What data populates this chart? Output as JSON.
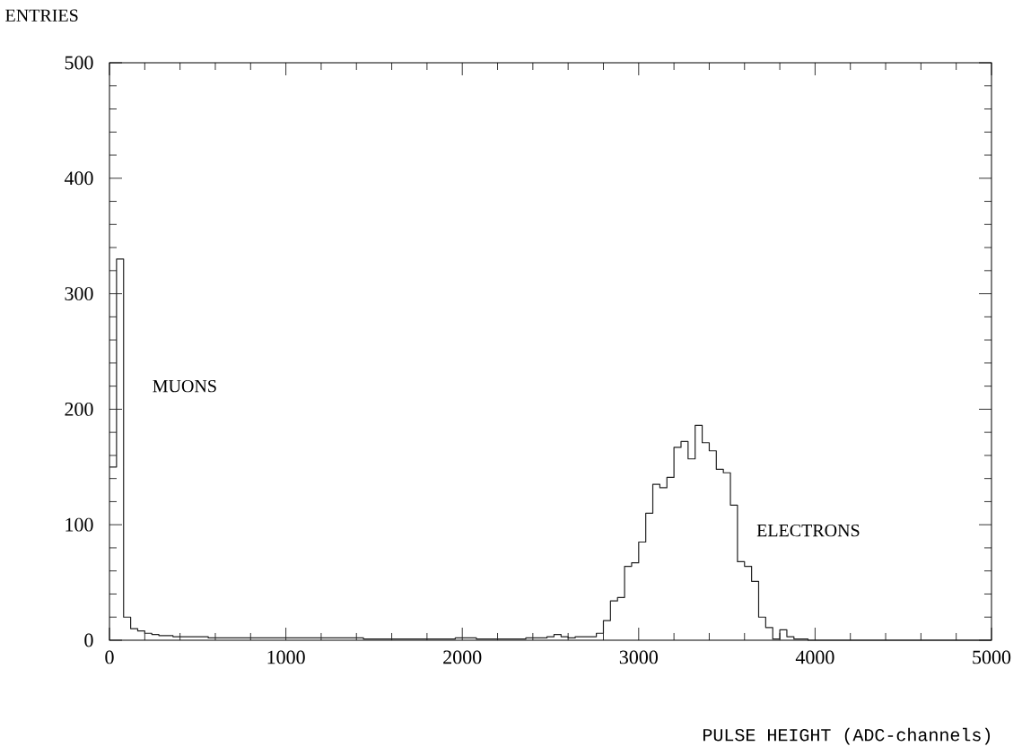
{
  "chart_data": {
    "type": "histogram",
    "xlabel": "PULSE HEIGHT (ADC-channels)",
    "ylabel": "ENTRIES",
    "bins": [
      0,
      40,
      80,
      120,
      160,
      200,
      240,
      280,
      320,
      360,
      400,
      440,
      480,
      520,
      560,
      600,
      640,
      680,
      720,
      760,
      800,
      840,
      880,
      920,
      960,
      1000,
      1040,
      1080,
      1120,
      1160,
      1200,
      1240,
      1280,
      1320,
      1360,
      1400,
      1440,
      1480,
      1520,
      1560,
      1600,
      1640,
      1680,
      1720,
      1760,
      1800,
      1840,
      1880,
      1920,
      1960,
      2000,
      2040,
      2080,
      2120,
      2160,
      2200,
      2240,
      2280,
      2320,
      2360,
      2400,
      2440,
      2480,
      2520,
      2560,
      2600,
      2640,
      2680,
      2720,
      2760,
      2800,
      2840,
      2880,
      2920,
      2960,
      3000,
      3040,
      3080,
      3120,
      3160,
      3200,
      3240,
      3280,
      3320,
      3360,
      3400,
      3440,
      3480,
      3520,
      3560,
      3600,
      3640,
      3680,
      3720,
      3760,
      3800,
      3840,
      3880,
      3920,
      3960,
      4000,
      4040,
      4080,
      4120,
      4160,
      4200,
      4240,
      4280,
      4320,
      4360,
      4400,
      4440,
      4480,
      4520,
      4560,
      4600,
      4640,
      4680,
      4720,
      4760,
      4800,
      4840,
      4880,
      4920,
      4960,
      5000
    ],
    "values": [
      150,
      330,
      20,
      10,
      8,
      6,
      5,
      4,
      4,
      3,
      3,
      3,
      3,
      3,
      2,
      2,
      2,
      2,
      2,
      2,
      2,
      2,
      2,
      2,
      2,
      2,
      2,
      2,
      2,
      2,
      2,
      2,
      2,
      2,
      2,
      2,
      1,
      1,
      1,
      1,
      1,
      1,
      1,
      1,
      1,
      1,
      1,
      1,
      1,
      2,
      2,
      2,
      1,
      1,
      1,
      1,
      1,
      1,
      1,
      2,
      2,
      2,
      3,
      5,
      3,
      2,
      3,
      3,
      3,
      6,
      17,
      34,
      37,
      64,
      67,
      85,
      110,
      135,
      132,
      141,
      167,
      172,
      157,
      186,
      171,
      164,
      148,
      145,
      117,
      68,
      64,
      51,
      20,
      11,
      1,
      9,
      3,
      1,
      1,
      0,
      0,
      0,
      0,
      0,
      0,
      0,
      0,
      0,
      0,
      0,
      0,
      0,
      0,
      0,
      0,
      0,
      0,
      0,
      0,
      0,
      0,
      0,
      0,
      0,
      0
    ],
    "color": "#222222",
    "xlim": [
      0,
      5000
    ],
    "ylim": [
      0,
      500
    ],
    "xticks": [
      0,
      1000,
      2000,
      3000,
      4000,
      5000
    ],
    "yticks": [
      0,
      100,
      200,
      300,
      400,
      500
    ],
    "annotations": [
      "MUONS",
      "ELECTRONS"
    ]
  }
}
